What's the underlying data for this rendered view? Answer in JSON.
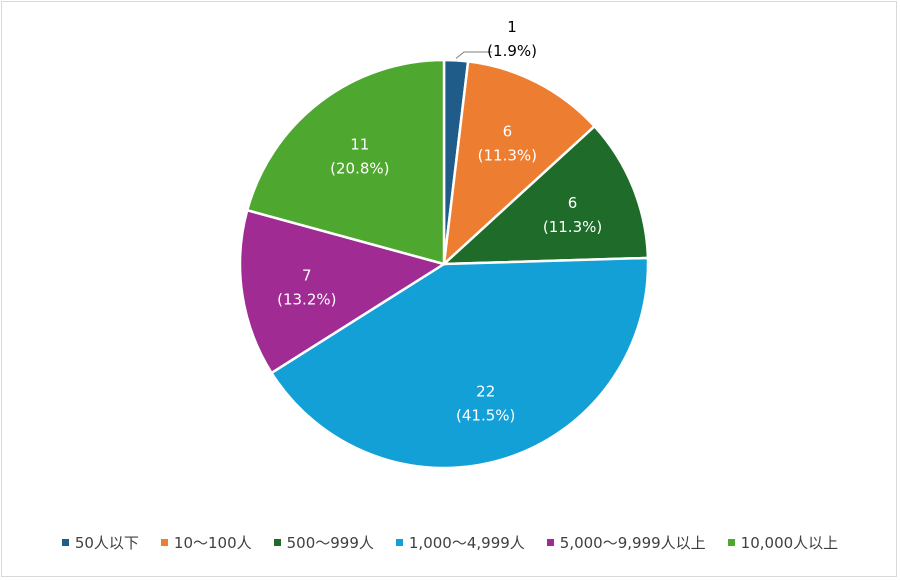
{
  "chart_data": {
    "type": "pie",
    "title": "",
    "categories": [
      "50人以下",
      "10〜100人",
      "500〜999人",
      "1,000〜4,999人",
      "5,000〜9,999人以上",
      "10,000人以上"
    ],
    "values": [
      1,
      6,
      6,
      22,
      7,
      11
    ],
    "percent_labels": [
      "(1.9%)",
      "(11.3%)",
      "(11.3%)",
      "(41.5%)",
      "(13.2%)",
      "(20.8%)"
    ],
    "colors": [
      "#1f5c8a",
      "#ed7d31",
      "#1e6b2a",
      "#12a0d7",
      "#a02b93",
      "#4ea72e"
    ],
    "label_colors": [
      "#000000",
      "#ffffff",
      "#ffffff",
      "#ffffff",
      "#ffffff",
      "#ffffff"
    ],
    "start_angle_deg": 0,
    "direction": "clockwise",
    "legend_position": "bottom"
  }
}
